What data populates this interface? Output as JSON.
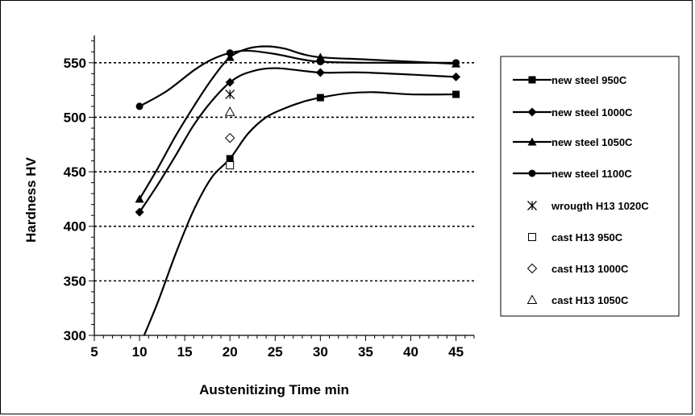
{
  "chart_data": {
    "type": "line",
    "title": "",
    "xlabel": "Austenitizing Time min",
    "ylabel": "Hardness HV",
    "xlim": [
      5,
      47
    ],
    "ylim": [
      300,
      575
    ],
    "x_ticks": [
      "5",
      "10",
      "15",
      "20",
      "25",
      "30",
      "35",
      "40",
      "45"
    ],
    "y_ticks": [
      "300",
      "350",
      "400",
      "450",
      "500",
      "550"
    ],
    "grid": "horizontal dashed at y ticks",
    "legend_position": "right",
    "series": [
      {
        "name": "new steel 950C",
        "marker": "square-filled",
        "x": [
          10,
          20,
          30,
          45
        ],
        "y": [
          290,
          462,
          518,
          521
        ],
        "curve": [
          [
            10,
            290
          ],
          [
            12,
            330
          ],
          [
            14,
            375
          ],
          [
            16,
            415
          ],
          [
            18,
            445
          ],
          [
            20,
            462
          ],
          [
            22,
            485
          ],
          [
            24,
            500
          ],
          [
            26,
            508
          ],
          [
            28,
            514
          ],
          [
            30,
            518
          ],
          [
            33,
            522
          ],
          [
            36,
            523
          ],
          [
            40,
            521
          ],
          [
            45,
            521
          ]
        ]
      },
      {
        "name": "new steel 1000C",
        "marker": "diamond-filled",
        "x": [
          10,
          20,
          30,
          45
        ],
        "y": [
          413,
          532,
          541,
          537
        ],
        "curve": [
          [
            10,
            413
          ],
          [
            12,
            438
          ],
          [
            14,
            465
          ],
          [
            16,
            493
          ],
          [
            18,
            515
          ],
          [
            20,
            532
          ],
          [
            22,
            541
          ],
          [
            25,
            545
          ],
          [
            30,
            541
          ],
          [
            35,
            541
          ],
          [
            45,
            537
          ]
        ]
      },
      {
        "name": "new steel 1050C",
        "marker": "triangle-filled",
        "x": [
          10,
          20,
          30,
          45
        ],
        "y": [
          425,
          555,
          555,
          549
        ],
        "curve": [
          [
            10,
            425
          ],
          [
            12,
            453
          ],
          [
            14,
            483
          ],
          [
            16,
            510
          ],
          [
            18,
            535
          ],
          [
            20,
            555
          ],
          [
            22,
            563
          ],
          [
            24,
            565
          ],
          [
            26,
            563
          ],
          [
            28,
            558
          ],
          [
            30,
            555
          ],
          [
            35,
            553
          ],
          [
            40,
            551
          ],
          [
            45,
            549
          ]
        ]
      },
      {
        "name": "new steel 1100C",
        "marker": "circle-filled",
        "x": [
          10,
          20,
          30,
          45
        ],
        "y": [
          510,
          559,
          551,
          550
        ],
        "curve": [
          [
            10,
            510
          ],
          [
            13,
            524
          ],
          [
            16,
            543
          ],
          [
            18,
            553
          ],
          [
            20,
            559
          ],
          [
            22,
            561
          ],
          [
            25,
            558
          ],
          [
            28,
            553
          ],
          [
            30,
            551
          ],
          [
            35,
            550
          ],
          [
            45,
            550
          ]
        ]
      },
      {
        "name": "wrougth H13 1020C",
        "marker": "asterisk",
        "x": [
          20
        ],
        "y": [
          521
        ]
      },
      {
        "name": "cast H13 950C",
        "marker": "square-open",
        "x": [
          20
        ],
        "y": [
          456
        ]
      },
      {
        "name": "cast H13 1000C",
        "marker": "diamond-open",
        "x": [
          20
        ],
        "y": [
          481
        ]
      },
      {
        "name": "cast H13 1050C",
        "marker": "triangle-open",
        "x": [
          20
        ],
        "y": [
          505
        ]
      }
    ]
  }
}
